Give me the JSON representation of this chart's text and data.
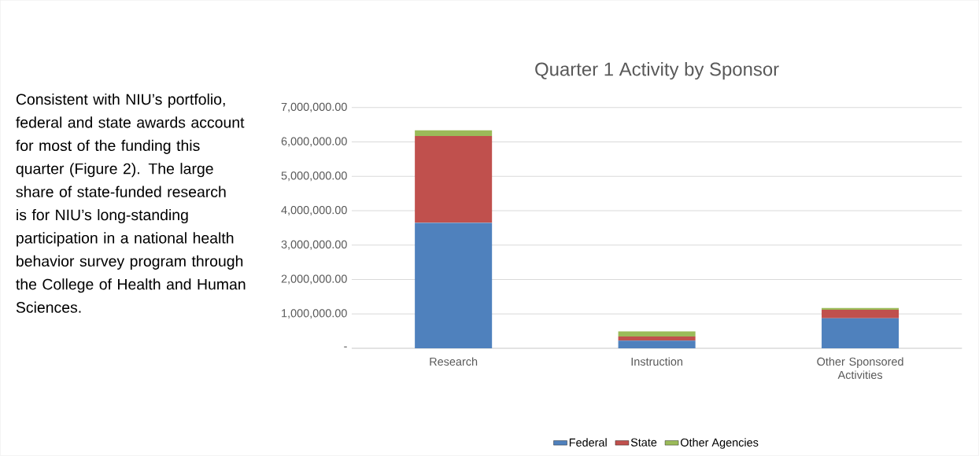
{
  "chart_data": {
    "type": "bar",
    "stacked": true,
    "title": "Quarter 1 Activity by Sponsor",
    "categories": [
      "Research",
      "Instruction",
      "Other Sponsored Activities"
    ],
    "series": [
      {
        "name": "Federal",
        "color": "#4f81bd",
        "values": [
          3650000,
          220000,
          870000
        ]
      },
      {
        "name": "State",
        "color": "#c0504d",
        "values": [
          2520000,
          120000,
          250000
        ]
      },
      {
        "name": "Other Agencies",
        "color": "#9bbb59",
        "values": [
          170000,
          150000,
          50000
        ]
      }
    ],
    "ylim": [
      0,
      7000000
    ],
    "yticks": [
      {
        "value": 0,
        "label": "-"
      },
      {
        "value": 1000000,
        "label": "1,000,000.00"
      },
      {
        "value": 2000000,
        "label": "2,000,000.00"
      },
      {
        "value": 3000000,
        "label": "3,000,000.00"
      },
      {
        "value": 4000000,
        "label": "4,000,000.00"
      },
      {
        "value": 5000000,
        "label": "5,000,000.00"
      },
      {
        "value": 6000000,
        "label": "6,000,000.00"
      },
      {
        "value": 7000000,
        "label": "7,000,000.00"
      }
    ],
    "grid": "y",
    "legend": "bottom",
    "annotations": [
      "Consistent with NIU’s portfolio, federal and state awards account for most of the funding this quarter (Figure 2). The large share of state-funded research is for NIU’s long-standing participation in a national health behavior survey program through the College of Health and Human Sciences."
    ]
  }
}
